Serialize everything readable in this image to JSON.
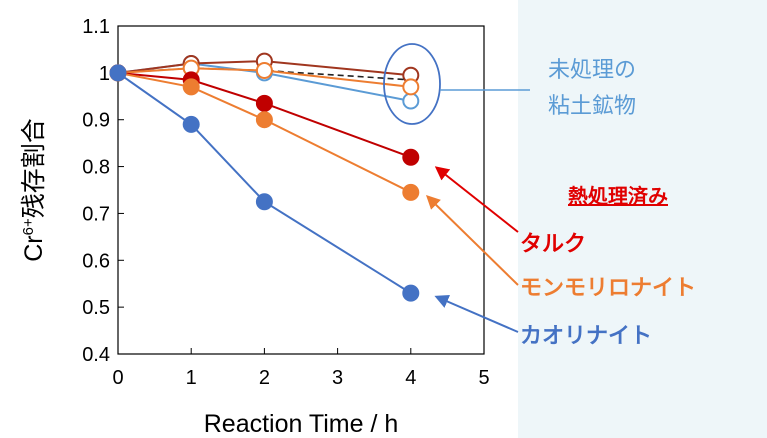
{
  "chart_data": {
    "type": "line",
    "xlabel": "Reaction Time / h",
    "ylabel_prefix": "Cr",
    "ylabel_sup": "6+",
    "ylabel_suffix": "残存割合",
    "xlim": [
      0,
      5
    ],
    "ylim": [
      0.4,
      1.1
    ],
    "x_ticks": [
      "0",
      "1",
      "2",
      "3",
      "4",
      "5"
    ],
    "y_ticks": [
      "0.4",
      "0.5",
      "0.6",
      "0.7",
      "0.8",
      "0.9",
      "1",
      "1.1"
    ],
    "grid": false,
    "series": [
      {
        "key": "untreated_kaolinite",
        "color": "#5b9bd5",
        "filled": false,
        "dashed": false,
        "x": [
          0,
          1,
          2,
          4
        ],
        "y": [
          1,
          1.02,
          1.0,
          0.94
        ]
      },
      {
        "key": "untreated_talc",
        "color": "#a0361f",
        "filled": false,
        "dashed": false,
        "x": [
          0,
          1,
          2,
          4
        ],
        "y": [
          1,
          1.02,
          1.025,
          0.995
        ]
      },
      {
        "key": "untreated_dashed",
        "color": "#222222",
        "filled": false,
        "dashed": true,
        "x": [
          0,
          1,
          2,
          4
        ],
        "y": [
          1,
          1.01,
          1.005,
          0.985
        ]
      },
      {
        "key": "untreated_montmorillonite",
        "color": "#ed7d31",
        "filled": false,
        "dashed": false,
        "x": [
          0,
          1,
          2,
          4
        ],
        "y": [
          1,
          1.01,
          1.005,
          0.97
        ]
      },
      {
        "key": "talc",
        "color": "#c00000",
        "filled": true,
        "dashed": false,
        "x": [
          0,
          1,
          2,
          4
        ],
        "y": [
          1,
          0.985,
          0.935,
          0.82
        ]
      },
      {
        "key": "montmorillonite",
        "color": "#ed7d31",
        "filled": true,
        "dashed": false,
        "x": [
          0,
          1,
          2,
          4
        ],
        "y": [
          1,
          0.97,
          0.9,
          0.745
        ]
      },
      {
        "key": "kaolinite",
        "color": "#4472c4",
        "filled": true,
        "dashed": false,
        "x": [
          0,
          1,
          2,
          4
        ],
        "y": [
          1,
          0.89,
          0.725,
          0.53
        ]
      }
    ]
  },
  "annotations": {
    "untreated_line1": "未処理の",
    "untreated_line2": "粘土鉱物",
    "heat_treated": "熱処理済み",
    "talc": "タルク",
    "montmorillonite": "モンモリロナイト",
    "kaolinite": "カオリナイト"
  }
}
